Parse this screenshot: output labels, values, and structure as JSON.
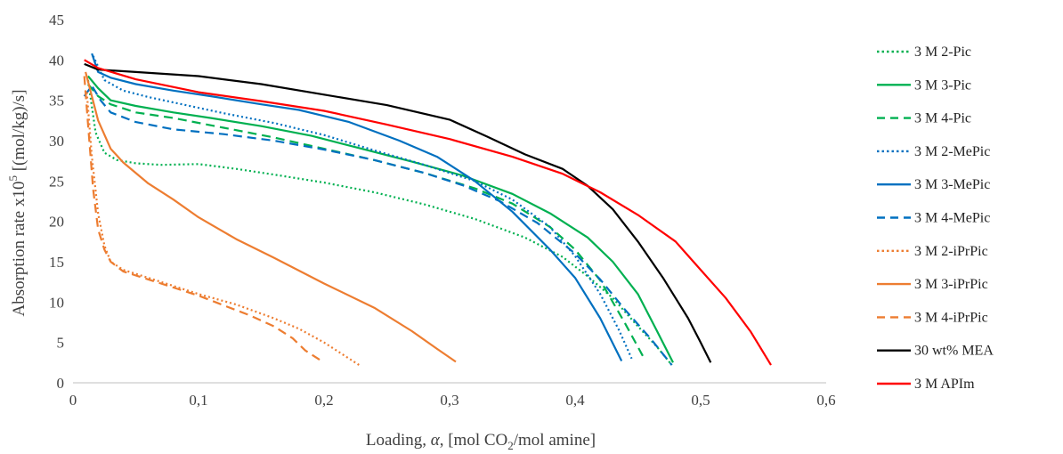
{
  "chart_data": {
    "type": "line",
    "title": "",
    "xlabel": {
      "text": "Loading, ",
      "symbol": "α",
      "middle": ", [mol CO",
      "sub": "2",
      "end": "/mol amine]"
    },
    "ylabel": {
      "text": "Absorption rate x10",
      "sup": "5",
      "end": " [(mol/kg)/s]"
    },
    "xlim": [
      0,
      0.6
    ],
    "ylim": [
      0,
      45
    ],
    "x_ticks": [
      "0",
      "0,1",
      "0,2",
      "0,3",
      "0,4",
      "0,5",
      "0,6"
    ],
    "x_tick_values": [
      0,
      0.1,
      0.2,
      0.3,
      0.4,
      0.5,
      0.6
    ],
    "y_ticks": [
      "0",
      "5",
      "10",
      "15",
      "20",
      "25",
      "30",
      "35",
      "40",
      "45"
    ],
    "y_tick_values": [
      0,
      5,
      10,
      15,
      20,
      25,
      30,
      35,
      40,
      45
    ],
    "grid": false,
    "legend_position": "right",
    "series": [
      {
        "name": "3 M 2-Pic",
        "color": "#00B050",
        "dash": "dotted",
        "x": [
          0.012,
          0.018,
          0.025,
          0.035,
          0.05,
          0.07,
          0.1,
          0.13,
          0.16,
          0.2,
          0.24,
          0.28,
          0.32,
          0.36,
          0.39,
          0.41,
          0.43,
          0.45,
          0.465,
          0.477
        ],
        "y": [
          37.5,
          31.0,
          28.5,
          27.6,
          27.2,
          27.0,
          27.1,
          26.5,
          25.8,
          24.8,
          23.6,
          22.1,
          20.3,
          18.0,
          15.6,
          13.2,
          10.5,
          7.0,
          4.5,
          2.2
        ]
      },
      {
        "name": "3 M 3-Pic",
        "color": "#00B050",
        "dash": "solid",
        "x": [
          0.012,
          0.02,
          0.03,
          0.05,
          0.08,
          0.11,
          0.15,
          0.19,
          0.23,
          0.27,
          0.31,
          0.35,
          0.38,
          0.41,
          0.43,
          0.45,
          0.465,
          0.478
        ],
        "y": [
          38.0,
          36.5,
          35.0,
          34.3,
          33.5,
          32.8,
          31.8,
          30.6,
          29.0,
          27.4,
          25.7,
          23.4,
          21.0,
          18.0,
          15.0,
          11.0,
          6.5,
          2.5
        ]
      },
      {
        "name": "3 M 4-Pic",
        "color": "#00B050",
        "dash": "dashed",
        "x": [
          0.012,
          0.02,
          0.03,
          0.05,
          0.08,
          0.12,
          0.16,
          0.2,
          0.24,
          0.28,
          0.32,
          0.35,
          0.38,
          0.4,
          0.42,
          0.44,
          0.455
        ],
        "y": [
          37.0,
          35.5,
          34.5,
          33.5,
          32.8,
          31.6,
          30.4,
          29.0,
          27.6,
          26.0,
          24.1,
          22.2,
          19.3,
          16.5,
          12.7,
          7.3,
          3.0
        ]
      },
      {
        "name": "3 M 2-MePic",
        "color": "#0070C0",
        "dash": "dotted",
        "x": [
          0.016,
          0.025,
          0.04,
          0.06,
          0.09,
          0.12,
          0.16,
          0.2,
          0.24,
          0.28,
          0.32,
          0.35,
          0.38,
          0.4,
          0.42,
          0.435,
          0.445
        ],
        "y": [
          40.5,
          37.5,
          36.2,
          35.4,
          34.4,
          33.4,
          32.2,
          30.7,
          28.8,
          27.0,
          25.0,
          22.7,
          19.3,
          15.7,
          11.0,
          6.5,
          3.0
        ]
      },
      {
        "name": "3 M 3-MePic",
        "color": "#0070C0",
        "dash": "solid",
        "x": [
          0.015,
          0.02,
          0.03,
          0.05,
          0.08,
          0.11,
          0.15,
          0.18,
          0.22,
          0.26,
          0.29,
          0.32,
          0.35,
          0.38,
          0.4,
          0.42,
          0.437
        ],
        "y": [
          40.8,
          38.5,
          37.8,
          37.0,
          36.2,
          35.5,
          34.5,
          33.8,
          32.3,
          30.0,
          28.0,
          25.0,
          21.2,
          16.5,
          13.0,
          8.0,
          2.7
        ]
      },
      {
        "name": "3 M 4-MePic",
        "color": "#0070C0",
        "dash": "dashed",
        "x": [
          0.009,
          0.015,
          0.022,
          0.03,
          0.05,
          0.08,
          0.12,
          0.16,
          0.2,
          0.24,
          0.28,
          0.31,
          0.34,
          0.37,
          0.4,
          0.42,
          0.44,
          0.46,
          0.477
        ],
        "y": [
          35.5,
          36.8,
          35.0,
          33.5,
          32.3,
          31.4,
          30.8,
          30.0,
          28.9,
          27.6,
          26.0,
          24.5,
          22.5,
          19.8,
          16.0,
          12.8,
          9.0,
          5.5,
          2.2
        ]
      },
      {
        "name": "3 M 2-iPrPic",
        "color": "#ED7D31",
        "dash": "dotted",
        "x": [
          0.011,
          0.015,
          0.02,
          0.025,
          0.03,
          0.04,
          0.06,
          0.08,
          0.1,
          0.13,
          0.16,
          0.18,
          0.2,
          0.215,
          0.228
        ],
        "y": [
          36.0,
          28.0,
          21.0,
          17.0,
          15.0,
          14.0,
          13.0,
          12.0,
          11.0,
          9.7,
          8.0,
          6.7,
          5.0,
          3.5,
          2.2
        ]
      },
      {
        "name": "3 M 3-iPrPic",
        "color": "#ED7D31",
        "dash": "solid",
        "x": [
          0.01,
          0.015,
          0.02,
          0.03,
          0.04,
          0.06,
          0.08,
          0.1,
          0.13,
          0.16,
          0.2,
          0.24,
          0.27,
          0.29,
          0.305
        ],
        "y": [
          38.5,
          35.5,
          32.5,
          29.0,
          27.3,
          24.7,
          22.7,
          20.5,
          17.8,
          15.5,
          12.3,
          9.3,
          6.4,
          4.2,
          2.6
        ]
      },
      {
        "name": "3 M 4-iPrPic",
        "color": "#ED7D31",
        "dash": "dashed",
        "x": [
          0.009,
          0.012,
          0.016,
          0.02,
          0.025,
          0.03,
          0.04,
          0.06,
          0.08,
          0.1,
          0.12,
          0.14,
          0.16,
          0.175,
          0.185,
          0.197
        ],
        "y": [
          38.0,
          32.0,
          24.0,
          19.0,
          16.5,
          15.0,
          13.8,
          12.8,
          11.8,
          10.8,
          9.6,
          8.4,
          7.0,
          5.5,
          4.0,
          2.8
        ]
      },
      {
        "name": "30 wt% MEA",
        "color": "#000000",
        "dash": "solid",
        "x": [
          0.009,
          0.02,
          0.05,
          0.1,
          0.15,
          0.2,
          0.25,
          0.3,
          0.33,
          0.36,
          0.39,
          0.41,
          0.43,
          0.45,
          0.47,
          0.49,
          0.5,
          0.508
        ],
        "y": [
          39.5,
          38.8,
          38.5,
          38.0,
          37.0,
          35.7,
          34.4,
          32.6,
          30.5,
          28.3,
          26.5,
          24.4,
          21.5,
          17.5,
          13.0,
          8.0,
          5.0,
          2.5
        ]
      },
      {
        "name": "3 M APIm",
        "color": "#FF0000",
        "dash": "solid",
        "x": [
          0.009,
          0.02,
          0.05,
          0.1,
          0.15,
          0.2,
          0.25,
          0.3,
          0.35,
          0.39,
          0.42,
          0.45,
          0.48,
          0.5,
          0.52,
          0.54,
          0.556
        ],
        "y": [
          40.0,
          39.0,
          37.6,
          36.0,
          34.9,
          33.7,
          32.0,
          30.2,
          28.0,
          25.9,
          23.6,
          20.8,
          17.5,
          14.0,
          10.5,
          6.3,
          2.2
        ]
      }
    ]
  }
}
